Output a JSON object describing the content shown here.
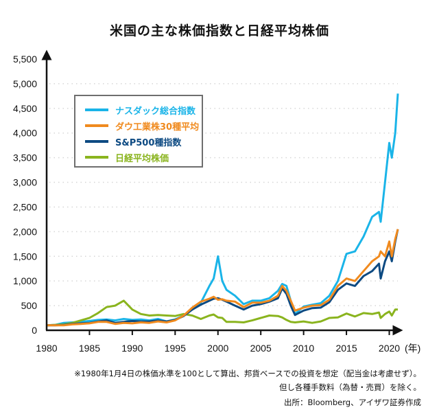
{
  "chart_data": {
    "type": "line",
    "title": "米国の主な株価指数と日経平均株価",
    "xlabel": "",
    "xunit": "(年)",
    "ylabel": "",
    "xlim": [
      1980,
      2021
    ],
    "ylim": [
      0,
      5500
    ],
    "x_ticks": [
      1980,
      1985,
      1990,
      1995,
      2000,
      2005,
      2010,
      2015,
      2020
    ],
    "x_tick_labels": [
      "1980",
      "1985",
      "1990",
      "1995",
      "2000",
      "2005",
      "2010",
      "2015",
      "2020"
    ],
    "y_ticks": [
      0,
      500,
      1000,
      1500,
      2000,
      2500,
      3000,
      3500,
      4000,
      4500,
      5000,
      5500
    ],
    "y_tick_labels": [
      "0",
      "500",
      "1,000",
      "1,500",
      "2,000",
      "2,500",
      "3,000",
      "3,500",
      "4,000",
      "4,500",
      "5,000",
      "5,500"
    ],
    "grid": "horizontal-dotted",
    "legend_position": "top-left",
    "x": [
      1980,
      1981,
      1982,
      1983,
      1984,
      1985,
      1986,
      1987,
      1988,
      1989,
      1990,
      1991,
      1992,
      1993,
      1994,
      1995,
      1996,
      1997,
      1998,
      1999,
      1999.5,
      2000,
      2000.5,
      2001,
      2002,
      2003,
      2004,
      2005,
      2006,
      2007,
      2007.5,
      2008,
      2008.5,
      2009,
      2010,
      2011,
      2012,
      2013,
      2014,
      2015,
      2016,
      2017,
      2018,
      2018.8,
      2019,
      2019.5,
      2020,
      2020.3,
      2020.7,
      2021
    ],
    "series": [
      {
        "name": "ナスダック総合指数",
        "color": "#1ab4e8",
        "values": [
          100,
          110,
          150,
          160,
          170,
          190,
          210,
          220,
          200,
          230,
          210,
          220,
          200,
          230,
          180,
          220,
          300,
          420,
          560,
          900,
          1050,
          1500,
          1000,
          820,
          700,
          530,
          600,
          600,
          650,
          800,
          940,
          900,
          600,
          330,
          480,
          520,
          550,
          700,
          1000,
          1550,
          1600,
          1900,
          2300,
          2400,
          2200,
          3000,
          3800,
          3500,
          4000,
          4800
        ]
      },
      {
        "name": "ダウ工業株30種平均",
        "color": "#f08a1e",
        "values": [
          100,
          100,
          100,
          120,
          130,
          140,
          170,
          170,
          130,
          150,
          140,
          160,
          150,
          180,
          160,
          200,
          300,
          460,
          580,
          640,
          680,
          620,
          630,
          600,
          580,
          470,
          560,
          560,
          600,
          700,
          900,
          800,
          600,
          400,
          460,
          500,
          510,
          620,
          900,
          1050,
          1000,
          1200,
          1400,
          1500,
          1600,
          1500,
          1800,
          1500,
          1850,
          2050
        ]
      },
      {
        "name": "S&P500種指数",
        "color": "#0d4a82",
        "values": [
          100,
          100,
          110,
          130,
          140,
          150,
          180,
          200,
          150,
          170,
          190,
          180,
          180,
          200,
          180,
          210,
          290,
          420,
          520,
          600,
          640,
          650,
          620,
          580,
          500,
          420,
          500,
          530,
          580,
          650,
          850,
          740,
          500,
          310,
          400,
          450,
          460,
          570,
          820,
          950,
          900,
          1100,
          1200,
          1350,
          1050,
          1400,
          1600,
          1400,
          1800,
          2050
        ]
      },
      {
        "name": "日経平均株価",
        "color": "#8ab41e",
        "values": [
          100,
          110,
          120,
          150,
          200,
          250,
          350,
          470,
          500,
          600,
          420,
          330,
          300,
          310,
          300,
          290,
          330,
          300,
          230,
          300,
          320,
          260,
          250,
          170,
          170,
          160,
          200,
          250,
          300,
          290,
          260,
          210,
          170,
          160,
          180,
          150,
          180,
          250,
          260,
          340,
          280,
          350,
          330,
          360,
          250,
          330,
          380,
          300,
          420,
          420
        ]
      }
    ]
  },
  "footnotes": {
    "line1": "※1980年1月4日の株価水準を100として算出、邦貨ベースでの投資を想定（配当金は考慮せず）。",
    "line2": "但し各種手数料（為替・売買）を除く。",
    "source": "出所：Bloomberg、アイザワ証券作成"
  }
}
